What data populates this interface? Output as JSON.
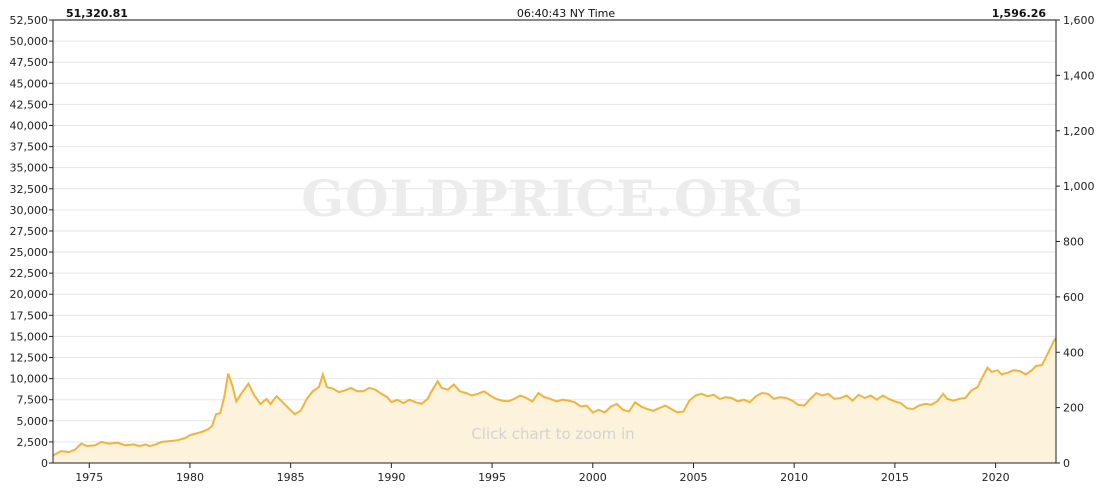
{
  "header": {
    "left_value": "51,320.81",
    "center_time": "06:40:43 NY Time",
    "right_value": "1,596.26"
  },
  "watermark": "GOLDPRICE.ORG",
  "hint": "Click chart to zoom in",
  "colors": {
    "line": "#f0b43c",
    "fill": "#fdf3dc",
    "grid": "#e6e6e6",
    "axis": "#222222"
  },
  "chart_data": {
    "type": "area",
    "x_ticks": [
      "1975",
      "1980",
      "1985",
      "1990",
      "1995",
      "2000",
      "2005",
      "2010",
      "2015",
      "2020"
    ],
    "xlim": [
      1973.2,
      2023.0
    ],
    "left_axis": {
      "ylim": [
        0,
        52500
      ],
      "ticks": [
        "0",
        "2,500",
        "5,000",
        "7,500",
        "10,000",
        "12,500",
        "15,000",
        "17,500",
        "20,000",
        "22,500",
        "25,000",
        "27,500",
        "30,000",
        "32,500",
        "35,000",
        "37,500",
        "40,000",
        "42,500",
        "45,000",
        "47,500",
        "50,000",
        "52,500"
      ]
    },
    "right_axis": {
      "ylim": [
        0,
        1600
      ],
      "ticks": [
        "0",
        "200",
        "400",
        "600",
        "800",
        "1,000",
        "1,200",
        "1,400",
        "1,600"
      ]
    },
    "series": [
      {
        "points": [
          [
            1973.2,
            900
          ],
          [
            1973.6,
            1400
          ],
          [
            1974.0,
            1300
          ],
          [
            1974.3,
            1600
          ],
          [
            1974.6,
            2300
          ],
          [
            1974.9,
            2000
          ],
          [
            1975.3,
            2100
          ],
          [
            1975.6,
            2500
          ],
          [
            1976.0,
            2300
          ],
          [
            1976.4,
            2400
          ],
          [
            1976.8,
            2100
          ],
          [
            1977.2,
            2200
          ],
          [
            1977.5,
            2000
          ],
          [
            1977.8,
            2200
          ],
          [
            1978.0,
            2000
          ],
          [
            1978.3,
            2200
          ],
          [
            1978.6,
            2500
          ],
          [
            1979.0,
            2600
          ],
          [
            1979.4,
            2700
          ],
          [
            1979.8,
            3000
          ],
          [
            1980.0,
            3300
          ],
          [
            1980.3,
            3500
          ],
          [
            1980.6,
            3700
          ],
          [
            1980.9,
            4000
          ],
          [
            1981.1,
            4400
          ],
          [
            1981.3,
            5800
          ],
          [
            1981.5,
            5900
          ],
          [
            1981.7,
            7800
          ],
          [
            1981.9,
            10600
          ],
          [
            1982.1,
            9200
          ],
          [
            1982.3,
            7300
          ],
          [
            1982.6,
            8400
          ],
          [
            1982.9,
            9400
          ],
          [
            1983.2,
            8000
          ],
          [
            1983.5,
            7000
          ],
          [
            1983.8,
            7600
          ],
          [
            1984.0,
            7000
          ],
          [
            1984.3,
            7900
          ],
          [
            1984.6,
            7200
          ],
          [
            1984.9,
            6500
          ],
          [
            1985.2,
            5800
          ],
          [
            1985.5,
            6200
          ],
          [
            1985.8,
            7600
          ],
          [
            1986.1,
            8500
          ],
          [
            1986.4,
            9000
          ],
          [
            1986.6,
            10500
          ],
          [
            1986.8,
            9000
          ],
          [
            1987.1,
            8800
          ],
          [
            1987.4,
            8400
          ],
          [
            1987.7,
            8600
          ],
          [
            1988.0,
            8900
          ],
          [
            1988.3,
            8500
          ],
          [
            1988.6,
            8500
          ],
          [
            1988.9,
            8900
          ],
          [
            1989.2,
            8700
          ],
          [
            1989.5,
            8200
          ],
          [
            1989.8,
            7800
          ],
          [
            1990.0,
            7200
          ],
          [
            1990.3,
            7500
          ],
          [
            1990.6,
            7100
          ],
          [
            1990.9,
            7500
          ],
          [
            1991.2,
            7200
          ],
          [
            1991.5,
            7000
          ],
          [
            1991.8,
            7600
          ],
          [
            1992.0,
            8500
          ],
          [
            1992.3,
            9700
          ],
          [
            1992.5,
            8900
          ],
          [
            1992.8,
            8700
          ],
          [
            1993.1,
            9300
          ],
          [
            1993.4,
            8500
          ],
          [
            1993.7,
            8300
          ],
          [
            1994.0,
            8000
          ],
          [
            1994.3,
            8200
          ],
          [
            1994.6,
            8500
          ],
          [
            1994.9,
            8000
          ],
          [
            1995.2,
            7600
          ],
          [
            1995.5,
            7400
          ],
          [
            1995.8,
            7300
          ],
          [
            1996.1,
            7600
          ],
          [
            1996.4,
            8000
          ],
          [
            1996.7,
            7700
          ],
          [
            1997.0,
            7300
          ],
          [
            1997.3,
            8300
          ],
          [
            1997.6,
            7800
          ],
          [
            1997.9,
            7600
          ],
          [
            1998.2,
            7300
          ],
          [
            1998.5,
            7500
          ],
          [
            1998.8,
            7400
          ],
          [
            1999.1,
            7200
          ],
          [
            1999.4,
            6700
          ],
          [
            1999.7,
            6800
          ],
          [
            2000.0,
            6000
          ],
          [
            2000.3,
            6300
          ],
          [
            2000.6,
            6000
          ],
          [
            2000.9,
            6700
          ],
          [
            2001.2,
            7000
          ],
          [
            2001.5,
            6300
          ],
          [
            2001.8,
            6100
          ],
          [
            2002.1,
            7200
          ],
          [
            2002.4,
            6700
          ],
          [
            2002.7,
            6400
          ],
          [
            2003.0,
            6200
          ],
          [
            2003.3,
            6500
          ],
          [
            2003.6,
            6800
          ],
          [
            2003.9,
            6400
          ],
          [
            2004.2,
            6000
          ],
          [
            2004.5,
            6100
          ],
          [
            2004.8,
            7400
          ],
          [
            2005.1,
            8000
          ],
          [
            2005.4,
            8200
          ],
          [
            2005.7,
            7900
          ],
          [
            2006.0,
            8100
          ],
          [
            2006.3,
            7600
          ],
          [
            2006.6,
            7800
          ],
          [
            2006.9,
            7700
          ],
          [
            2007.2,
            7300
          ],
          [
            2007.5,
            7500
          ],
          [
            2007.8,
            7200
          ],
          [
            2008.1,
            7900
          ],
          [
            2008.4,
            8300
          ],
          [
            2008.7,
            8200
          ],
          [
            2009.0,
            7600
          ],
          [
            2009.3,
            7800
          ],
          [
            2009.6,
            7700
          ],
          [
            2009.9,
            7400
          ],
          [
            2010.2,
            6900
          ],
          [
            2010.5,
            6800
          ],
          [
            2010.8,
            7600
          ],
          [
            2011.1,
            8300
          ],
          [
            2011.4,
            8000
          ],
          [
            2011.7,
            8200
          ],
          [
            2012.0,
            7600
          ],
          [
            2012.3,
            7700
          ],
          [
            2012.6,
            8000
          ],
          [
            2012.9,
            7400
          ],
          [
            2013.2,
            8100
          ],
          [
            2013.5,
            7700
          ],
          [
            2013.8,
            8000
          ],
          [
            2014.1,
            7500
          ],
          [
            2014.4,
            8000
          ],
          [
            2014.7,
            7600
          ],
          [
            2015.0,
            7300
          ],
          [
            2015.3,
            7100
          ],
          [
            2015.6,
            6500
          ],
          [
            2015.9,
            6400
          ],
          [
            2016.2,
            6800
          ],
          [
            2016.5,
            7000
          ],
          [
            2016.8,
            6900
          ],
          [
            2017.1,
            7300
          ],
          [
            2017.4,
            8200
          ],
          [
            2017.6,
            7600
          ],
          [
            2017.9,
            7400
          ],
          [
            2018.2,
            7600
          ],
          [
            2018.5,
            7700
          ],
          [
            2018.8,
            8600
          ],
          [
            2019.1,
            9000
          ],
          [
            2019.4,
            10400
          ],
          [
            2019.6,
            11300
          ],
          [
            2019.8,
            10800
          ],
          [
            2020.1,
            11000
          ],
          [
            2020.3,
            10500
          ],
          [
            2020.6,
            10700
          ],
          [
            2020.9,
            11000
          ],
          [
            2021.2,
            10900
          ],
          [
            2021.5,
            10500
          ],
          [
            2021.8,
            11000
          ],
          [
            2022.0,
            11500
          ],
          [
            2022.3,
            11600
          ],
          [
            2022.6,
            13000
          ],
          [
            2022.9,
            14500
          ],
          [
            2023.0,
            14800
          ]
        ]
      }
    ]
  }
}
